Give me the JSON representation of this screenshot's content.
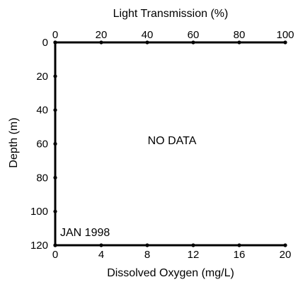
{
  "chart_data": {
    "type": "line",
    "title": "",
    "top_axis": {
      "label": "Light Transmission (%)",
      "range": [
        0,
        100
      ],
      "ticks": [
        "0",
        "20",
        "40",
        "60",
        "80",
        "100"
      ]
    },
    "bottom_axis": {
      "label": "Dissolved Oxygen (mg/L)",
      "range": [
        0,
        20
      ],
      "ticks": [
        "0",
        "4",
        "8",
        "12",
        "16",
        "20"
      ]
    },
    "y_axis": {
      "label": "Depth (m)",
      "range": [
        0,
        120
      ],
      "inverted": true,
      "ticks": [
        "0",
        "20",
        "40",
        "60",
        "80",
        "100",
        "120"
      ]
    },
    "series": [],
    "grid": false,
    "annotations": {
      "no_data": "NO DATA",
      "date": "JAN 1998"
    }
  }
}
